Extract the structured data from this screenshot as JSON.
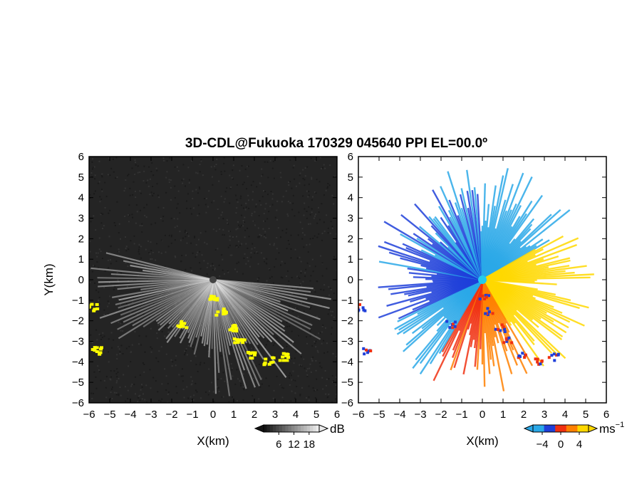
{
  "chart_data": [
    {
      "type": "heatmap",
      "title": "3D-CDL@Fukuoka 170329 045640 PPI EL=00.0º",
      "xlabel": "X(km)",
      "ylabel": "Y(km)",
      "xlim": [
        -6,
        6
      ],
      "ylim": [
        -6,
        6
      ],
      "x_ticks": [
        "−6",
        "−5",
        "−4",
        "−3",
        "−2",
        "−1",
        "0",
        "1",
        "2",
        "3",
        "4",
        "5",
        "6"
      ],
      "y_ticks": [
        "6",
        "5",
        "4",
        "3",
        "2",
        "1",
        "0",
        "−1",
        "−2",
        "−3",
        "−4",
        "−5",
        "−6"
      ],
      "colorbar": {
        "unit": "dB",
        "ticks": [
          "6",
          "12",
          "18"
        ],
        "tick_values": [
          6,
          12,
          18
        ],
        "range": [
          0,
          22
        ]
      },
      "colors": {
        "background": "#242424",
        "beam": "#d8d8d8",
        "flag": "#ffff00"
      },
      "beam_sector": {
        "from_deg": 95,
        "to_deg": 285,
        "max_range_km": 6.0
      },
      "flagged_echo": [
        {
          "x": 0.0,
          "y": -0.8
        },
        {
          "x": 0.3,
          "y": -1.5
        },
        {
          "x": 0.8,
          "y": -2.3
        },
        {
          "x": 1.2,
          "y": -2.9
        },
        {
          "x": 1.8,
          "y": -3.6
        },
        {
          "x": 2.6,
          "y": -3.9
        },
        {
          "x": 3.4,
          "y": -3.7
        },
        {
          "x": -5.9,
          "y": -1.3
        },
        {
          "x": -5.7,
          "y": -3.4
        },
        {
          "x": -1.6,
          "y": -2.1
        }
      ]
    },
    {
      "type": "heatmap",
      "xlabel": "X(km)",
      "xlim": [
        -6,
        6
      ],
      "ylim": [
        -6,
        6
      ],
      "x_ticks": [
        "−6",
        "−5",
        "−4",
        "−3",
        "−2",
        "−1",
        "0",
        "1",
        "2",
        "3",
        "4",
        "5",
        "6"
      ],
      "y_ticks": [
        "6",
        "5",
        "4",
        "3",
        "2",
        "1",
        "0",
        "−1",
        "−2",
        "−3",
        "−4",
        "−5",
        "−6"
      ],
      "colorbar": {
        "unit": "ms",
        "unit_sup": "−1",
        "ticks": [
          "−4",
          "0",
          "4"
        ],
        "tick_values": [
          -4,
          0,
          4
        ],
        "range": [
          -6,
          6
        ]
      },
      "colors": {
        "approach_dark": "#1f3fd9",
        "approach_light": "#2aa8e8",
        "recede_red": "#f03010",
        "recede_orange": "#ff8000",
        "recede_yellow": "#ffd800",
        "station": "#22ccee"
      },
      "velocity_sectors": [
        {
          "from_deg": 100,
          "to_deg": 150,
          "value": 4.5
        },
        {
          "from_deg": 150,
          "to_deg": 180,
          "value": 2.8
        },
        {
          "from_deg": 180,
          "to_deg": 210,
          "value": 1.6
        },
        {
          "from_deg": 210,
          "to_deg": 245,
          "value": -0.8
        },
        {
          "from_deg": 245,
          "to_deg": 280,
          "value": -4.5
        },
        {
          "from_deg": 280,
          "to_deg": 360,
          "value": -3.5
        },
        {
          "from_deg": 0,
          "to_deg": 60,
          "value": -2.2
        },
        {
          "from_deg": 60,
          "to_deg": 95,
          "value": 4.6
        }
      ]
    }
  ]
}
